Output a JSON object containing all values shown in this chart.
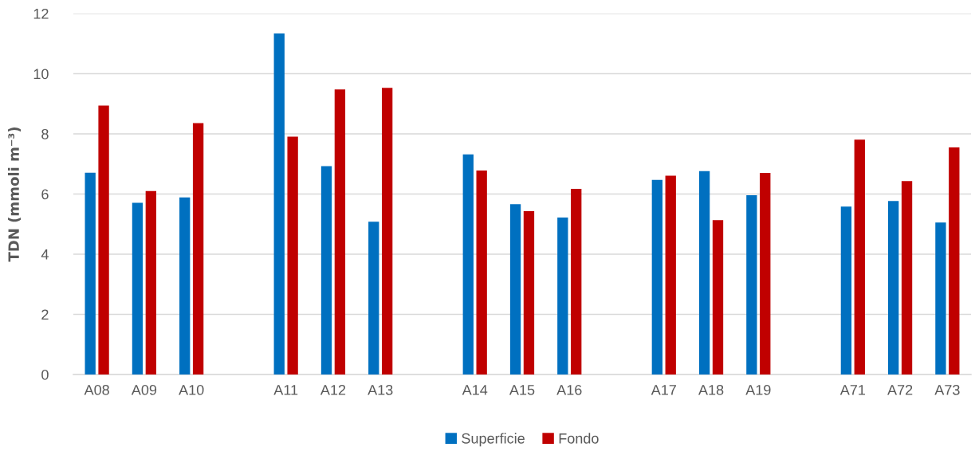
{
  "chart_data": {
    "type": "bar",
    "ylabel": "TDN (mmoli m⁻³)",
    "categories": [
      "A08",
      "A09",
      "A10",
      null,
      "A11",
      "A12",
      "A13",
      null,
      "A14",
      "A15",
      "A16",
      null,
      "A17",
      "A18",
      "A19",
      null,
      "A71",
      "A72",
      "A73"
    ],
    "series": [
      {
        "name": "Superficie",
        "color": "#0070c0",
        "values": [
          6.71,
          5.71,
          5.89,
          null,
          11.34,
          6.93,
          5.08,
          null,
          7.32,
          5.66,
          5.22,
          null,
          6.47,
          6.76,
          5.96,
          null,
          5.58,
          5.77,
          5.05
        ]
      },
      {
        "name": "Fondo",
        "color": "#c00000",
        "values": [
          8.94,
          6.1,
          8.36,
          null,
          7.91,
          9.48,
          9.53,
          null,
          6.78,
          5.43,
          6.17,
          null,
          6.61,
          5.13,
          6.7,
          null,
          7.81,
          6.43,
          7.55
        ]
      }
    ],
    "ylim": [
      0,
      12
    ],
    "yticks": [
      0,
      2,
      4,
      6,
      8,
      10,
      12
    ],
    "grid": "y",
    "legend": "bottom"
  }
}
